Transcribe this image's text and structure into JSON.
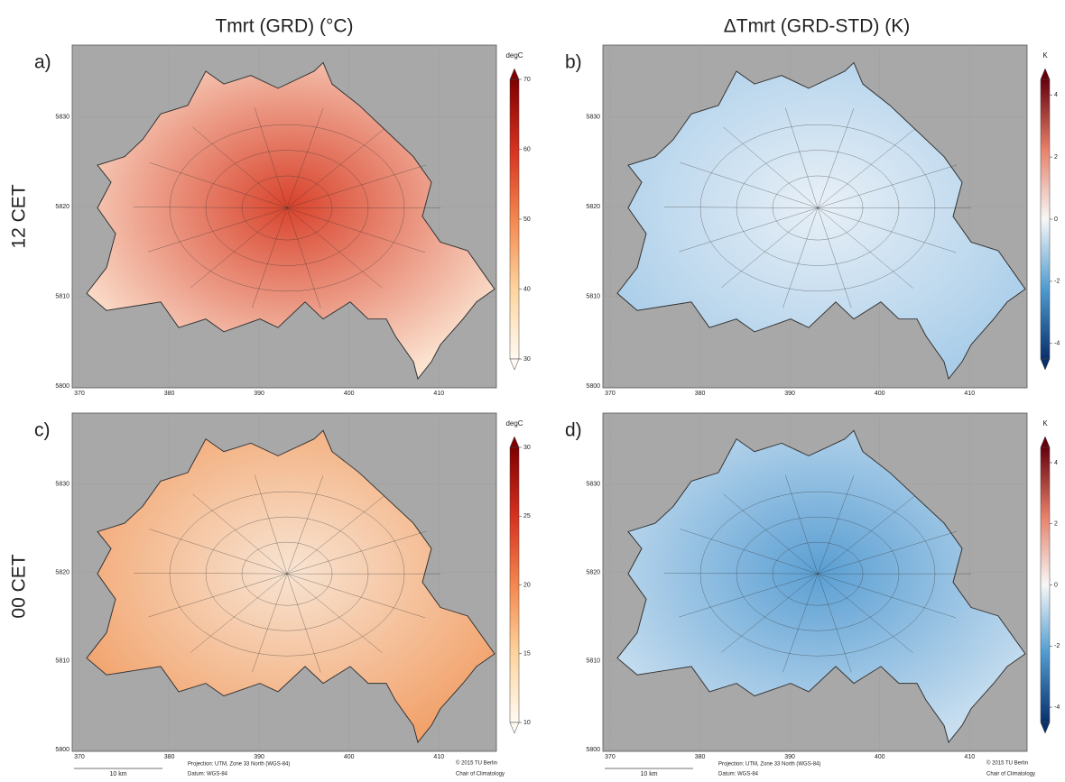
{
  "column_titles": [
    "Tmrt (GRD) (°C)",
    "ΔTmrt (GRD-STD) (K)"
  ],
  "row_labels": [
    "12 CET",
    "00 CET"
  ],
  "panels": [
    {
      "label": "a)",
      "colorbar": {
        "unit": "degC",
        "lim": [
          30,
          70
        ],
        "ticks": [
          30,
          40,
          50,
          60,
          70
        ],
        "colors": [
          "#fffaf3",
          "#fdd49e",
          "#f4874f",
          "#d7301f",
          "#7f0000"
        ]
      },
      "map_colors": [
        "#d9432c",
        "#fbe3d0"
      ],
      "xlim": [
        369.2,
        416.4
      ],
      "ylim": [
        5799.8,
        5838
      ],
      "xticks": [
        370,
        380,
        390,
        400,
        410
      ],
      "yticks": [
        5800,
        5810,
        5820,
        5830
      ]
    },
    {
      "label": "b)",
      "colorbar": {
        "unit": "K",
        "lim": [
          -4.5,
          4.5
        ],
        "ticks": [
          -4,
          -2,
          0,
          2,
          4
        ],
        "colors": [
          "#08306b",
          "#4f9bd0",
          "#f7f7f7",
          "#e6806a",
          "#67000d"
        ]
      },
      "map_colors": [
        "#e8f0f7",
        "#a9cde9"
      ],
      "xlim": [
        369.2,
        416.4
      ],
      "ylim": [
        5799.8,
        5838
      ],
      "xticks": [
        370,
        380,
        390,
        400,
        410
      ],
      "yticks": [
        5800,
        5810,
        5820,
        5830
      ]
    },
    {
      "label": "c)",
      "colorbar": {
        "unit": "degC",
        "lim": [
          10,
          30
        ],
        "ticks": [
          10,
          15,
          20,
          25,
          30
        ],
        "colors": [
          "#fffaf3",
          "#fdd49e",
          "#f4874f",
          "#d7301f",
          "#7f0000"
        ]
      },
      "map_colors": [
        "#f8e4d2",
        "#f2a26b"
      ],
      "xlim": [
        369.2,
        416.4
      ],
      "ylim": [
        5799.8,
        5838
      ],
      "xticks": [
        370,
        380,
        390,
        400,
        410
      ],
      "yticks": [
        5800,
        5810,
        5820,
        5830
      ]
    },
    {
      "label": "d)",
      "colorbar": {
        "unit": "K",
        "lim": [
          -4.5,
          4.5
        ],
        "ticks": [
          -4,
          -2,
          0,
          2,
          4
        ],
        "colors": [
          "#08306b",
          "#4f9bd0",
          "#f7f7f7",
          "#e6806a",
          "#67000d"
        ]
      },
      "map_colors": [
        "#5b9fd3",
        "#c9dff0"
      ],
      "xlim": [
        369.2,
        416.4
      ],
      "ylim": [
        5799.8,
        5838
      ],
      "xticks": [
        370,
        380,
        390,
        400,
        410
      ],
      "yticks": [
        5800,
        5810,
        5820,
        5830
      ]
    }
  ],
  "footer": {
    "scale_label": "10 km",
    "projection": "Projection: UTM, Zone 33 North (WGS-84)",
    "datum": "Datum: WGS-84",
    "copyright": "© 2015 TU Berlin",
    "institution": "Chair of Climatology"
  }
}
